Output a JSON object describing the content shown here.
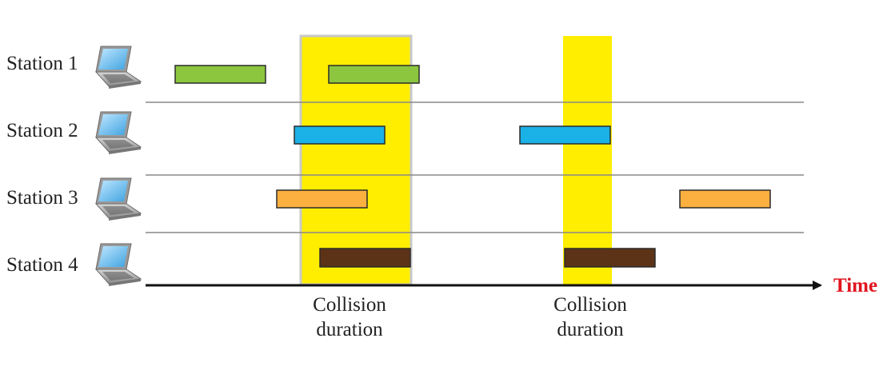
{
  "stations": [
    {
      "label": "Station 1"
    },
    {
      "label": "Station 2"
    },
    {
      "label": "Station 3"
    },
    {
      "label": "Station 4"
    }
  ],
  "axis": {
    "label": "Time",
    "label_color": "#e0141e"
  },
  "collisions": [
    {
      "caption_line1": "Collision",
      "caption_line2": "duration"
    },
    {
      "caption_line1": "Collision",
      "caption_line2": "duration"
    }
  ],
  "frames": [
    {
      "station": 1,
      "color": "#8cc63f"
    },
    {
      "station": 1,
      "color": "#8cc63f"
    },
    {
      "station": 2,
      "color": "#1ab1e6"
    },
    {
      "station": 2,
      "color": "#1ab1e6"
    },
    {
      "station": 3,
      "color": "#fbb040"
    },
    {
      "station": 3,
      "color": "#fbb040"
    },
    {
      "station": 4,
      "color": "#5c3317"
    },
    {
      "station": 4,
      "color": "#5c3317"
    }
  ],
  "colors": {
    "collision_zone": "#ffee00",
    "separator": "#888888",
    "axis": "#111111"
  },
  "icons": [
    "laptop-icon"
  ]
}
